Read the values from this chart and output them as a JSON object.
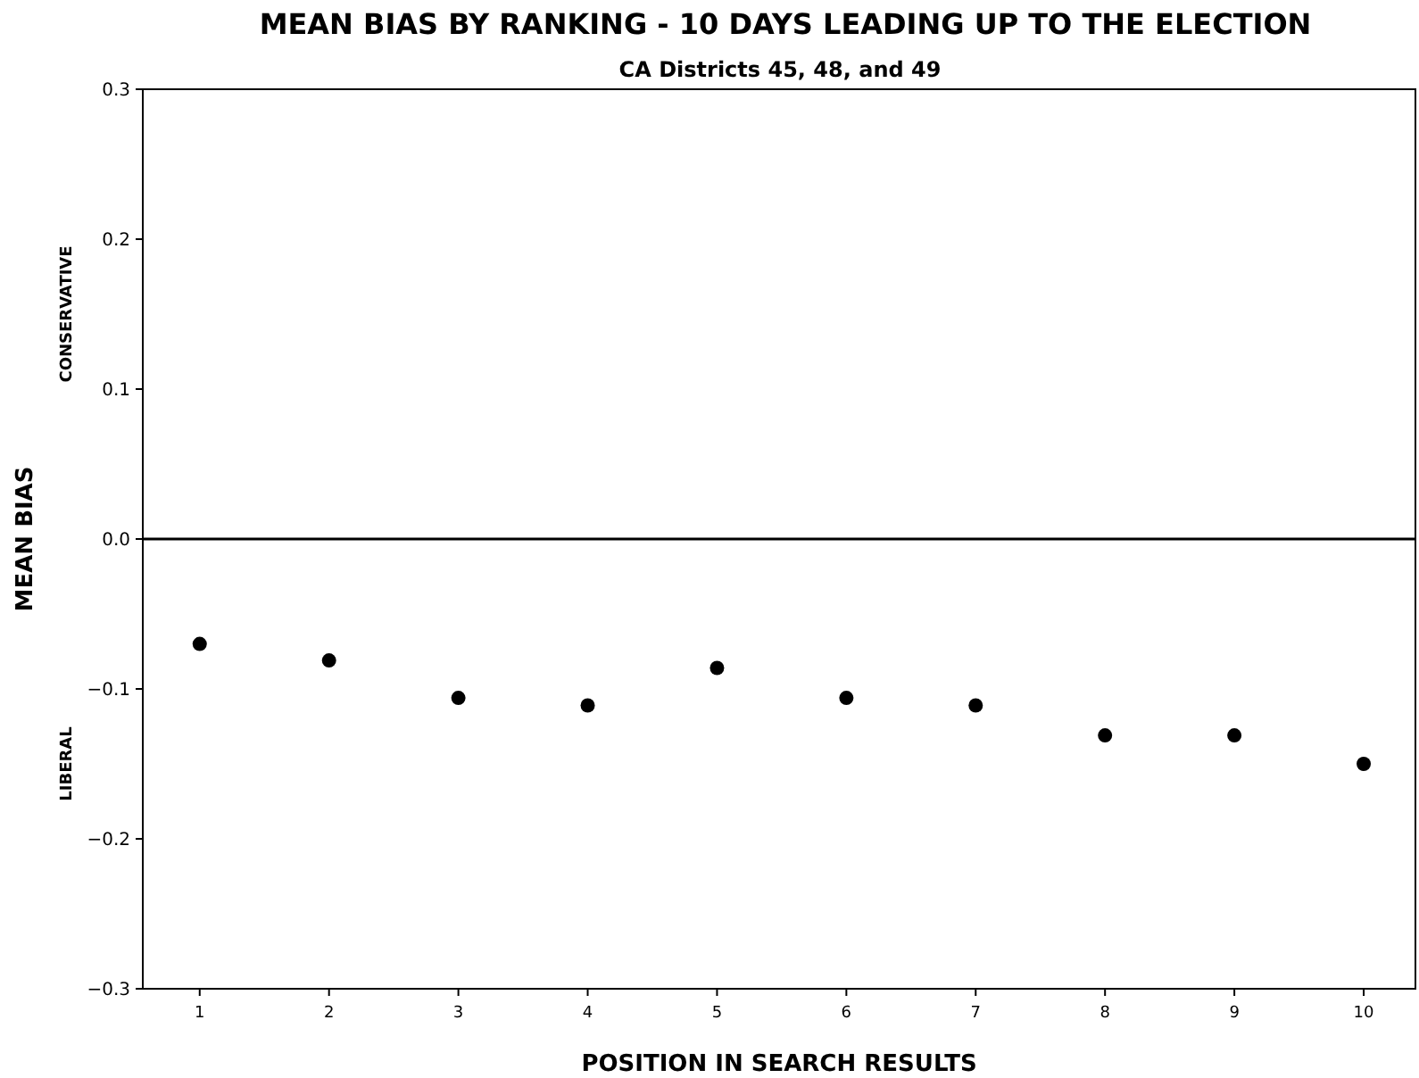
{
  "chart_data": {
    "type": "scatter",
    "title": "MEAN BIAS BY RANKING - 10 DAYS LEADING UP TO THE ELECTION",
    "subtitle": "CA Districts 45, 48, and 49",
    "xlabel": "POSITION IN SEARCH RESULTS",
    "ylabel": "MEAN BIAS",
    "x": [
      1,
      2,
      3,
      4,
      5,
      6,
      7,
      8,
      9,
      10
    ],
    "series": [
      {
        "color": "#000000",
        "values": [
          -0.07,
          -0.081,
          -0.106,
          -0.111,
          -0.086,
          -0.106,
          -0.111,
          -0.131,
          -0.131,
          -0.15
        ]
      }
    ],
    "xlim": [
      0.56,
      10.4
    ],
    "xticks": [
      1,
      2,
      3,
      4,
      5,
      6,
      7,
      8,
      9,
      10
    ],
    "ylim": [
      -0.3,
      0.3
    ],
    "yticks": [
      -0.3,
      -0.2,
      -0.1,
      {
        "value": 0,
        "label": "0.0"
      },
      0.1,
      0.2,
      0.3
    ],
    "ref_lines": [
      {
        "axis": "y",
        "value": 0,
        "color": "#000000"
      }
    ],
    "annotations": [
      "CONSERVATIVE",
      "LIBERAL"
    ],
    "marker": "circle"
  }
}
